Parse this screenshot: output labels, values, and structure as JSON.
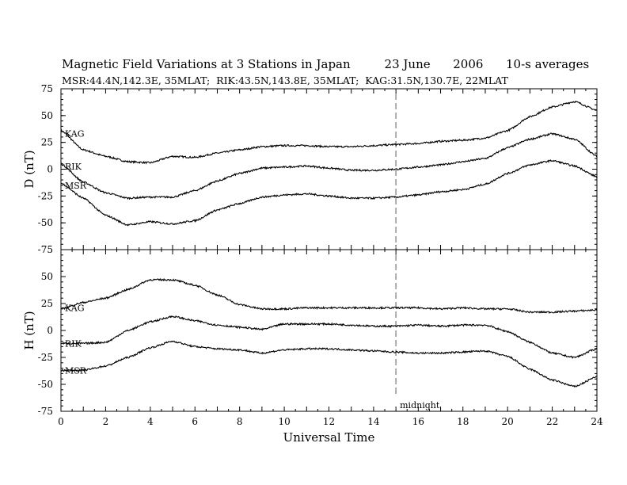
{
  "title": "Magnetic Field Variations at 3 Stations in Japan         23 June      2006      10-s averages",
  "subtitle": "MSR:44.4N,142.3E, 35MLAT;  RIK:43.5N,143.8E, 35MLAT;  KAG:31.5N,130.7E, 22MLAT",
  "chart_data": [
    {
      "type": "line",
      "ylabel": "D (nT)",
      "xlabel": "",
      "xlim": [
        0,
        24
      ],
      "ylim": [
        -75,
        75
      ],
      "yticks": [
        -75,
        -50,
        -25,
        0,
        25,
        50,
        75
      ],
      "grid": false,
      "series": [
        {
          "name": "KAG",
          "x": [
            0,
            1,
            2,
            3,
            4,
            5,
            6,
            7,
            8,
            9,
            10,
            11,
            12,
            13,
            14,
            15,
            16,
            17,
            18,
            19,
            20,
            21,
            22,
            23,
            24
          ],
          "values": [
            36,
            18,
            12,
            7,
            6,
            12,
            11,
            15,
            18,
            21,
            22,
            22,
            21,
            21,
            22,
            23,
            24,
            26,
            27,
            29,
            36,
            49,
            58,
            63,
            55
          ]
        },
        {
          "name": "RIK",
          "x": [
            0,
            1,
            2,
            3,
            4,
            5,
            6,
            7,
            8,
            9,
            10,
            11,
            12,
            13,
            14,
            15,
            16,
            17,
            18,
            19,
            20,
            21,
            22,
            23,
            24
          ],
          "values": [
            5,
            -12,
            -22,
            -27,
            -26,
            -26,
            -20,
            -11,
            -4,
            1,
            2,
            3,
            1,
            -1,
            -1,
            0,
            2,
            4,
            7,
            10,
            20,
            28,
            33,
            28,
            12
          ]
        },
        {
          "name": "MSR",
          "x": [
            0,
            1,
            2,
            3,
            4,
            5,
            6,
            7,
            8,
            9,
            10,
            11,
            12,
            13,
            14,
            15,
            16,
            17,
            18,
            19,
            20,
            21,
            22,
            23,
            24
          ],
          "values": [
            -13,
            -27,
            -43,
            -52,
            -49,
            -51,
            -48,
            -38,
            -32,
            -26,
            -24,
            -23,
            -25,
            -27,
            -27,
            -26,
            -24,
            -21,
            -19,
            -14,
            -4,
            4,
            8,
            3,
            -7
          ]
        }
      ],
      "vline": {
        "x": 15,
        "style": "dashed"
      }
    },
    {
      "type": "line",
      "ylabel": "H (nT)",
      "xlabel": "Universal Time",
      "xlim": [
        0,
        24
      ],
      "ylim": [
        -75,
        75
      ],
      "xticks": [
        0,
        2,
        4,
        6,
        8,
        10,
        12,
        14,
        16,
        18,
        20,
        22,
        24
      ],
      "yticks": [
        -75,
        -50,
        -25,
        0,
        25,
        50,
        75
      ],
      "grid": false,
      "series": [
        {
          "name": "KAG",
          "x": [
            0,
            1,
            2,
            3,
            4,
            5,
            6,
            7,
            8,
            9,
            10,
            11,
            12,
            13,
            14,
            15,
            16,
            17,
            18,
            19,
            20,
            21,
            22,
            23,
            24
          ],
          "values": [
            20,
            26,
            30,
            38,
            47,
            47,
            42,
            33,
            24,
            20,
            20,
            21,
            21,
            21,
            21,
            21,
            21,
            20,
            21,
            20,
            20,
            17,
            17,
            18,
            19
          ]
        },
        {
          "name": "RIK",
          "x": [
            0,
            1,
            2,
            3,
            4,
            5,
            6,
            7,
            8,
            9,
            10,
            11,
            12,
            13,
            14,
            15,
            16,
            17,
            18,
            19,
            20,
            21,
            22,
            23,
            24
          ],
          "values": [
            -12,
            -12,
            -11,
            0,
            8,
            13,
            9,
            5,
            3,
            1,
            6,
            6,
            6,
            5,
            4,
            4,
            5,
            4,
            5,
            5,
            -1,
            -11,
            -21,
            -25,
            -17
          ]
        },
        {
          "name": "MSR",
          "x": [
            0,
            1,
            2,
            3,
            4,
            5,
            6,
            7,
            8,
            9,
            10,
            11,
            12,
            13,
            14,
            15,
            16,
            17,
            18,
            19,
            20,
            21,
            22,
            23,
            24
          ],
          "values": [
            -37,
            -37,
            -33,
            -25,
            -16,
            -10,
            -15,
            -17,
            -18,
            -21,
            -18,
            -17,
            -17,
            -18,
            -19,
            -20,
            -21,
            -21,
            -20,
            -19,
            -24,
            -36,
            -46,
            -52,
            -43
          ]
        }
      ],
      "vline": {
        "x": 15,
        "style": "dashed",
        "label": "midnight"
      }
    }
  ]
}
